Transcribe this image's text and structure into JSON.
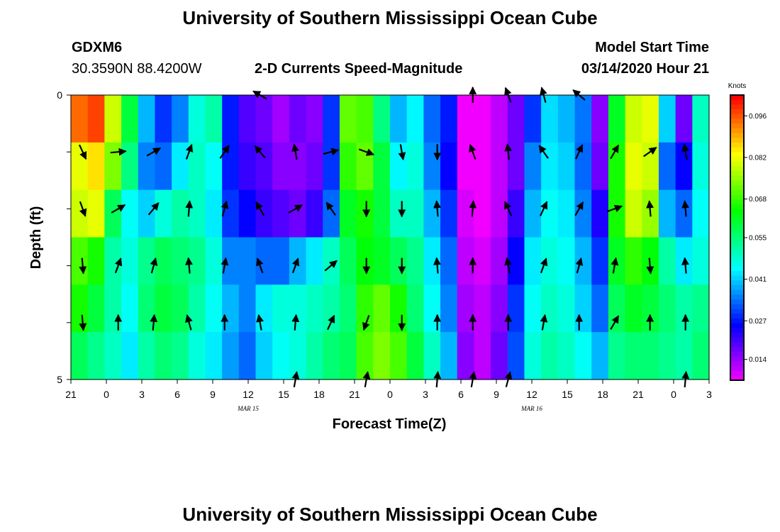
{
  "page": {
    "title_top": "University of Southern Mississippi Ocean Cube",
    "title_bottom": "University of Southern Mississippi Ocean Cube",
    "station": "GDXM6",
    "coords": "30.3590N 88.4200W",
    "plot_title": "2-D Currents Speed-Magnitude",
    "model_label": "Model Start Time",
    "model_time": "03/14/2020 Hour 21"
  },
  "chart_data": {
    "type": "heatmap",
    "title": "2-D Currents Speed-Magnitude",
    "xlabel": "Forecast Time(Z)",
    "ylabel": "Depth (ft)",
    "x_tick_labels": [
      "21",
      "0",
      "3",
      "6",
      "9",
      "12",
      "15",
      "18",
      "21",
      "0",
      "3",
      "6",
      "9",
      "12",
      "15",
      "18",
      "21",
      "0",
      "3"
    ],
    "x_range_hours": [
      0,
      54
    ],
    "date_labels": [
      {
        "text": "MAR 15",
        "hour": 15
      },
      {
        "text": "MAR 16",
        "hour": 39
      }
    ],
    "y_range": [
      0,
      5
    ],
    "y_tick_labels": [
      "0",
      "5"
    ],
    "depth_bands": 5,
    "colorbar": {
      "unit": "Knots",
      "min": 0.007,
      "max": 0.103,
      "tick_values": [
        0.096,
        0.082,
        0.068,
        0.055,
        0.041,
        0.027,
        0.014
      ],
      "tick_labels": [
        "0.096",
        "0.082",
        "0.068",
        "0.055",
        "0.041",
        "0.027",
        "0.014"
      ]
    },
    "series": [
      {
        "name": "band_0_surface",
        "values": [
          0.095,
          0.098,
          0.08,
          0.06,
          0.04,
          0.03,
          0.036,
          0.048,
          0.052,
          0.028,
          0.02,
          0.018,
          0.014,
          0.018,
          0.016,
          0.03,
          0.072,
          0.07,
          0.055,
          0.04,
          0.045,
          0.034,
          0.028,
          0.008,
          0.008,
          0.012,
          0.018,
          0.03,
          0.043,
          0.04,
          0.035,
          0.016,
          0.062,
          0.08,
          0.082,
          0.042,
          0.018,
          0.05
        ]
      },
      {
        "name": "band_1",
        "values": [
          0.082,
          0.086,
          0.074,
          0.055,
          0.036,
          0.034,
          0.044,
          0.05,
          0.046,
          0.028,
          0.022,
          0.02,
          0.016,
          0.016,
          0.018,
          0.03,
          0.068,
          0.072,
          0.06,
          0.045,
          0.048,
          0.036,
          0.026,
          0.008,
          0.008,
          0.012,
          0.018,
          0.036,
          0.044,
          0.042,
          0.034,
          0.018,
          0.066,
          0.082,
          0.08,
          0.034,
          0.026,
          0.048
        ]
      },
      {
        "name": "band_2",
        "values": [
          0.08,
          0.082,
          0.058,
          0.046,
          0.042,
          0.048,
          0.052,
          0.05,
          0.044,
          0.03,
          0.026,
          0.022,
          0.02,
          0.018,
          0.022,
          0.034,
          0.062,
          0.066,
          0.06,
          0.05,
          0.05,
          0.04,
          0.03,
          0.01,
          0.008,
          0.012,
          0.022,
          0.04,
          0.046,
          0.044,
          0.036,
          0.024,
          0.066,
          0.08,
          0.076,
          0.04,
          0.034,
          0.046
        ]
      },
      {
        "name": "band_3",
        "values": [
          0.07,
          0.066,
          0.052,
          0.048,
          0.054,
          0.058,
          0.056,
          0.054,
          0.048,
          0.036,
          0.036,
          0.034,
          0.034,
          0.04,
          0.044,
          0.05,
          0.058,
          0.064,
          0.062,
          0.058,
          0.054,
          0.044,
          0.034,
          0.012,
          0.01,
          0.014,
          0.026,
          0.044,
          0.048,
          0.046,
          0.04,
          0.03,
          0.062,
          0.068,
          0.064,
          0.052,
          0.044,
          0.048
        ]
      },
      {
        "name": "band_4",
        "values": [
          0.066,
          0.06,
          0.052,
          0.046,
          0.056,
          0.06,
          0.058,
          0.052,
          0.046,
          0.04,
          0.036,
          0.044,
          0.048,
          0.048,
          0.05,
          0.052,
          0.056,
          0.068,
          0.072,
          0.066,
          0.056,
          0.046,
          0.036,
          0.014,
          0.012,
          0.016,
          0.03,
          0.046,
          0.05,
          0.048,
          0.042,
          0.034,
          0.058,
          0.062,
          0.06,
          0.056,
          0.052,
          0.054
        ]
      },
      {
        "name": "band_5_bottom",
        "values": [
          0.058,
          0.054,
          0.05,
          0.044,
          0.052,
          0.056,
          0.054,
          0.048,
          0.044,
          0.038,
          0.034,
          0.042,
          0.046,
          0.048,
          0.052,
          0.056,
          0.058,
          0.07,
          0.074,
          0.07,
          0.06,
          0.05,
          0.04,
          0.016,
          0.012,
          0.018,
          0.032,
          0.048,
          0.052,
          0.05,
          0.046,
          0.04,
          0.054,
          0.056,
          0.056,
          0.054,
          0.052,
          0.056
        ]
      }
    ],
    "vector_hours": [
      1,
      4,
      7,
      10,
      13,
      16,
      19,
      22,
      25,
      28,
      31,
      34,
      37,
      40,
      43,
      46,
      49,
      52
    ],
    "vectors_deg": [
      [
        null,
        null,
        null,
        null,
        null,
        300,
        null,
        null,
        null,
        null,
        null,
        0,
        340,
        345,
        310,
        null,
        null,
        null
      ],
      [
        155,
        85,
        60,
        20,
        35,
        320,
        350,
        75,
        110,
        170,
        180,
        340,
        355,
        325,
        25,
        30,
        55,
        350
      ],
      [
        160,
        60,
        40,
        5,
        15,
        330,
        60,
        325,
        180,
        180,
        355,
        5,
        335,
        25,
        30,
        70,
        355,
        355
      ],
      [
        175,
        20,
        15,
        355,
        10,
        340,
        20,
        50,
        180,
        180,
        355,
        0,
        350,
        20,
        15,
        10,
        175,
        355
      ],
      [
        175,
        0,
        5,
        345,
        0,
        350,
        5,
        25,
        200,
        180,
        0,
        0,
        0,
        10,
        0,
        30,
        0,
        0
      ],
      [
        null,
        null,
        null,
        null,
        null,
        null,
        10,
        null,
        10,
        null,
        5,
        10,
        15,
        null,
        null,
        null,
        null,
        5
      ]
    ]
  }
}
